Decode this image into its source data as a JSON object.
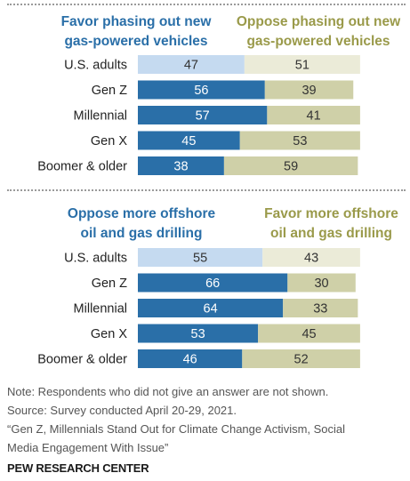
{
  "colors": {
    "us_left": "#c5daf0",
    "us_right": "#ebebd8",
    "left": "#2a6fa8",
    "right": "#cfd0a8",
    "head_left": "#2a6fa8",
    "head_right": "#9a9a4a"
  },
  "chart_data": [
    {
      "type": "bar",
      "orientation": "horizontal-stacked",
      "categories": [
        "U.S. adults",
        "Gen Z",
        "Millennial",
        "Gen X",
        "Boomer & older"
      ],
      "series": [
        {
          "name": "Favor phasing out new gas-powered vehicles",
          "values": [
            47,
            56,
            57,
            45,
            38
          ]
        },
        {
          "name": "Oppose phasing out new gas-powered vehicles",
          "values": [
            51,
            39,
            41,
            53,
            59
          ]
        }
      ],
      "head_left": [
        "Favor phasing out new",
        "gas-powered vehicles"
      ],
      "head_right": [
        "Oppose phasing out new",
        "gas-powered vehicles"
      ]
    },
    {
      "type": "bar",
      "orientation": "horizontal-stacked",
      "categories": [
        "U.S. adults",
        "Gen Z",
        "Millennial",
        "Gen X",
        "Boomer & older"
      ],
      "series": [
        {
          "name": "Oppose more offshore oil and gas drilling",
          "values": [
            55,
            66,
            64,
            53,
            46
          ]
        },
        {
          "name": "Favor more offshore oil and gas drilling",
          "values": [
            43,
            30,
            33,
            45,
            52
          ]
        }
      ],
      "head_left": [
        "Oppose more offshore",
        "oil and gas drilling"
      ],
      "head_right": [
        "Favor more offshore",
        "oil and gas drilling"
      ]
    }
  ],
  "notes": {
    "note": "Note: Respondents who did not give an answer are not shown.",
    "source": "Source: Survey conducted April 20-29, 2021.",
    "report_line1": "“Gen Z, Millennials Stand Out for Climate Change Activism, Social",
    "report_line2": "Media Engagement With Issue”"
  },
  "logo": "PEW RESEARCH CENTER"
}
